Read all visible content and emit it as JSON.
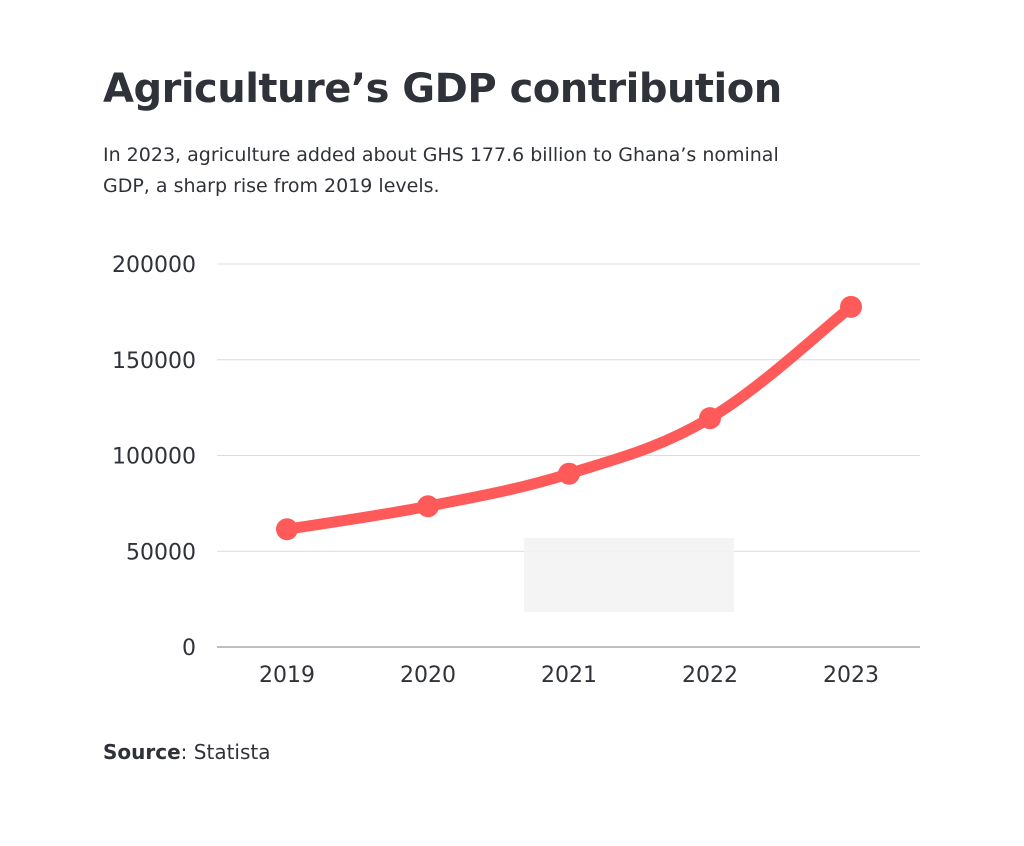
{
  "header": {
    "title": "Agriculture’s GDP contribution",
    "subtitle": "In 2023, agriculture added about GHS 177.6 billion to Ghana’s nominal GDP, a sharp rise from 2019 levels."
  },
  "footer": {
    "source_label": "Source",
    "source_separator": ": ",
    "source_value": "Statista"
  },
  "colors": {
    "line": "#ff5a5a",
    "grid": "#dcdcdc",
    "axis": "#a8a8a8",
    "text": "#2f3238"
  },
  "chart_data": {
    "type": "line",
    "title": "Agriculture’s GDP contribution",
    "xlabel": "",
    "ylabel": "",
    "categories": [
      "2019",
      "2020",
      "2021",
      "2022",
      "2023"
    ],
    "series": [
      {
        "values": [
          61500,
          73500,
          90500,
          119500,
          177600
        ]
      }
    ],
    "ylim": [
      0,
      200000
    ],
    "yticks": [
      0,
      50000,
      100000,
      150000,
      200000
    ],
    "ytick_labels": [
      "0",
      "50000",
      "100000",
      "150000",
      "200000"
    ],
    "grid": true,
    "legend": "none",
    "smooth": true,
    "markers": true
  }
}
